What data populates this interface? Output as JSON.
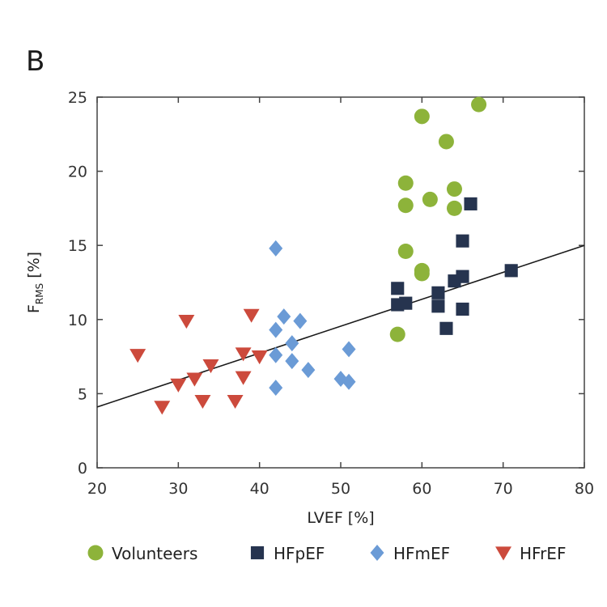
{
  "panel_label": "B",
  "chart_data": {
    "type": "scatter",
    "title": "",
    "xlabel": "LVEF [%]",
    "ylabel": "F",
    "ylabel_subscript": "RMS",
    "ylabel_unit": "[%]",
    "xlim": [
      20,
      80
    ],
    "ylim": [
      0,
      25
    ],
    "xticks": [
      20,
      30,
      40,
      50,
      60,
      70,
      80
    ],
    "yticks": [
      0,
      5,
      10,
      15,
      20,
      25
    ],
    "colors": {
      "Volunteers": "#8db33a",
      "HFpEF": "#26344f",
      "HFmEF": "#6b9bd6",
      "HFrEF": "#cc4a3c",
      "regression": "#1a1a1a",
      "axis": "#444444"
    },
    "regression_line": {
      "x": [
        20,
        80
      ],
      "y": [
        4.1,
        15.0
      ]
    },
    "series": [
      {
        "name": "Volunteers",
        "marker": "circle",
        "points": [
          [
            57,
            9.0
          ],
          [
            58,
            14.6
          ],
          [
            58,
            17.7
          ],
          [
            58,
            19.2
          ],
          [
            60,
            13.1
          ],
          [
            60,
            13.3
          ],
          [
            60,
            23.7
          ],
          [
            61,
            18.1
          ],
          [
            63,
            22.0
          ],
          [
            64,
            18.8
          ],
          [
            64,
            17.5
          ],
          [
            67,
            24.5
          ]
        ]
      },
      {
        "name": "HFpEF",
        "marker": "square",
        "points": [
          [
            57,
            12.1
          ],
          [
            57,
            11.0
          ],
          [
            58,
            11.1
          ],
          [
            62,
            11.8
          ],
          [
            62,
            10.9
          ],
          [
            63,
            9.4
          ],
          [
            64,
            12.6
          ],
          [
            65,
            12.9
          ],
          [
            65,
            15.3
          ],
          [
            65,
            10.7
          ],
          [
            66,
            17.8
          ],
          [
            71,
            13.3
          ]
        ]
      },
      {
        "name": "HFmEF",
        "marker": "diamond",
        "points": [
          [
            42,
            14.8
          ],
          [
            42,
            9.3
          ],
          [
            42,
            7.6
          ],
          [
            42,
            5.4
          ],
          [
            43,
            10.2
          ],
          [
            44,
            8.4
          ],
          [
            44,
            7.2
          ],
          [
            45,
            9.9
          ],
          [
            46,
            6.6
          ],
          [
            50,
            6.0
          ],
          [
            51,
            5.8
          ],
          [
            51,
            8.0
          ]
        ]
      },
      {
        "name": "HFrEF",
        "marker": "triangle-down",
        "points": [
          [
            25,
            7.6
          ],
          [
            28,
            4.1
          ],
          [
            30,
            5.6
          ],
          [
            31,
            9.9
          ],
          [
            32,
            6.0
          ],
          [
            33,
            4.5
          ],
          [
            34,
            6.9
          ],
          [
            37,
            4.5
          ],
          [
            38,
            6.1
          ],
          [
            38,
            7.7
          ],
          [
            39,
            10.3
          ],
          [
            40,
            7.5
          ]
        ]
      }
    ],
    "legend": [
      "Volunteers",
      "HFpEF",
      "HFmEF",
      "HFrEF"
    ],
    "legend_position": "bottom"
  }
}
